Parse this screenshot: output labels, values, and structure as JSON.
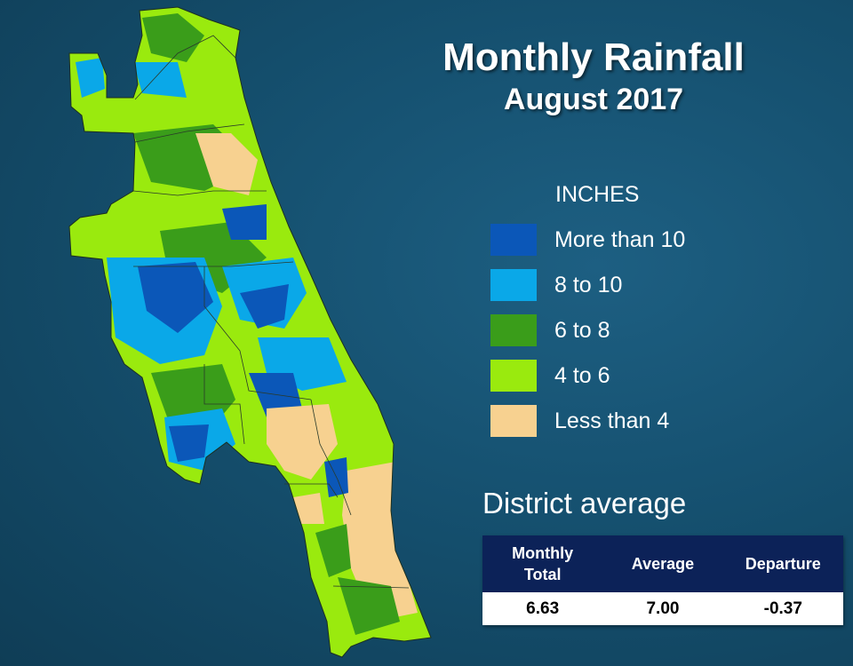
{
  "title": "Monthly Rainfall",
  "subtitle": "August 2017",
  "legend": {
    "heading": "INCHES",
    "items": [
      {
        "label": "More than 10",
        "color": "#0b57b8"
      },
      {
        "label": "8 to 10",
        "color": "#0aa8e8"
      },
      {
        "label": "6 to 8",
        "color": "#3a9d1a"
      },
      {
        "label": "4 to 6",
        "color": "#9aea0e"
      },
      {
        "label": "Less than 4",
        "color": "#f7d190"
      }
    ]
  },
  "district": {
    "heading": "District average",
    "columns": [
      "Monthly\nTotal",
      "Average",
      "Departure"
    ],
    "values": [
      "6.63",
      "7.00",
      "-0.37"
    ]
  }
}
